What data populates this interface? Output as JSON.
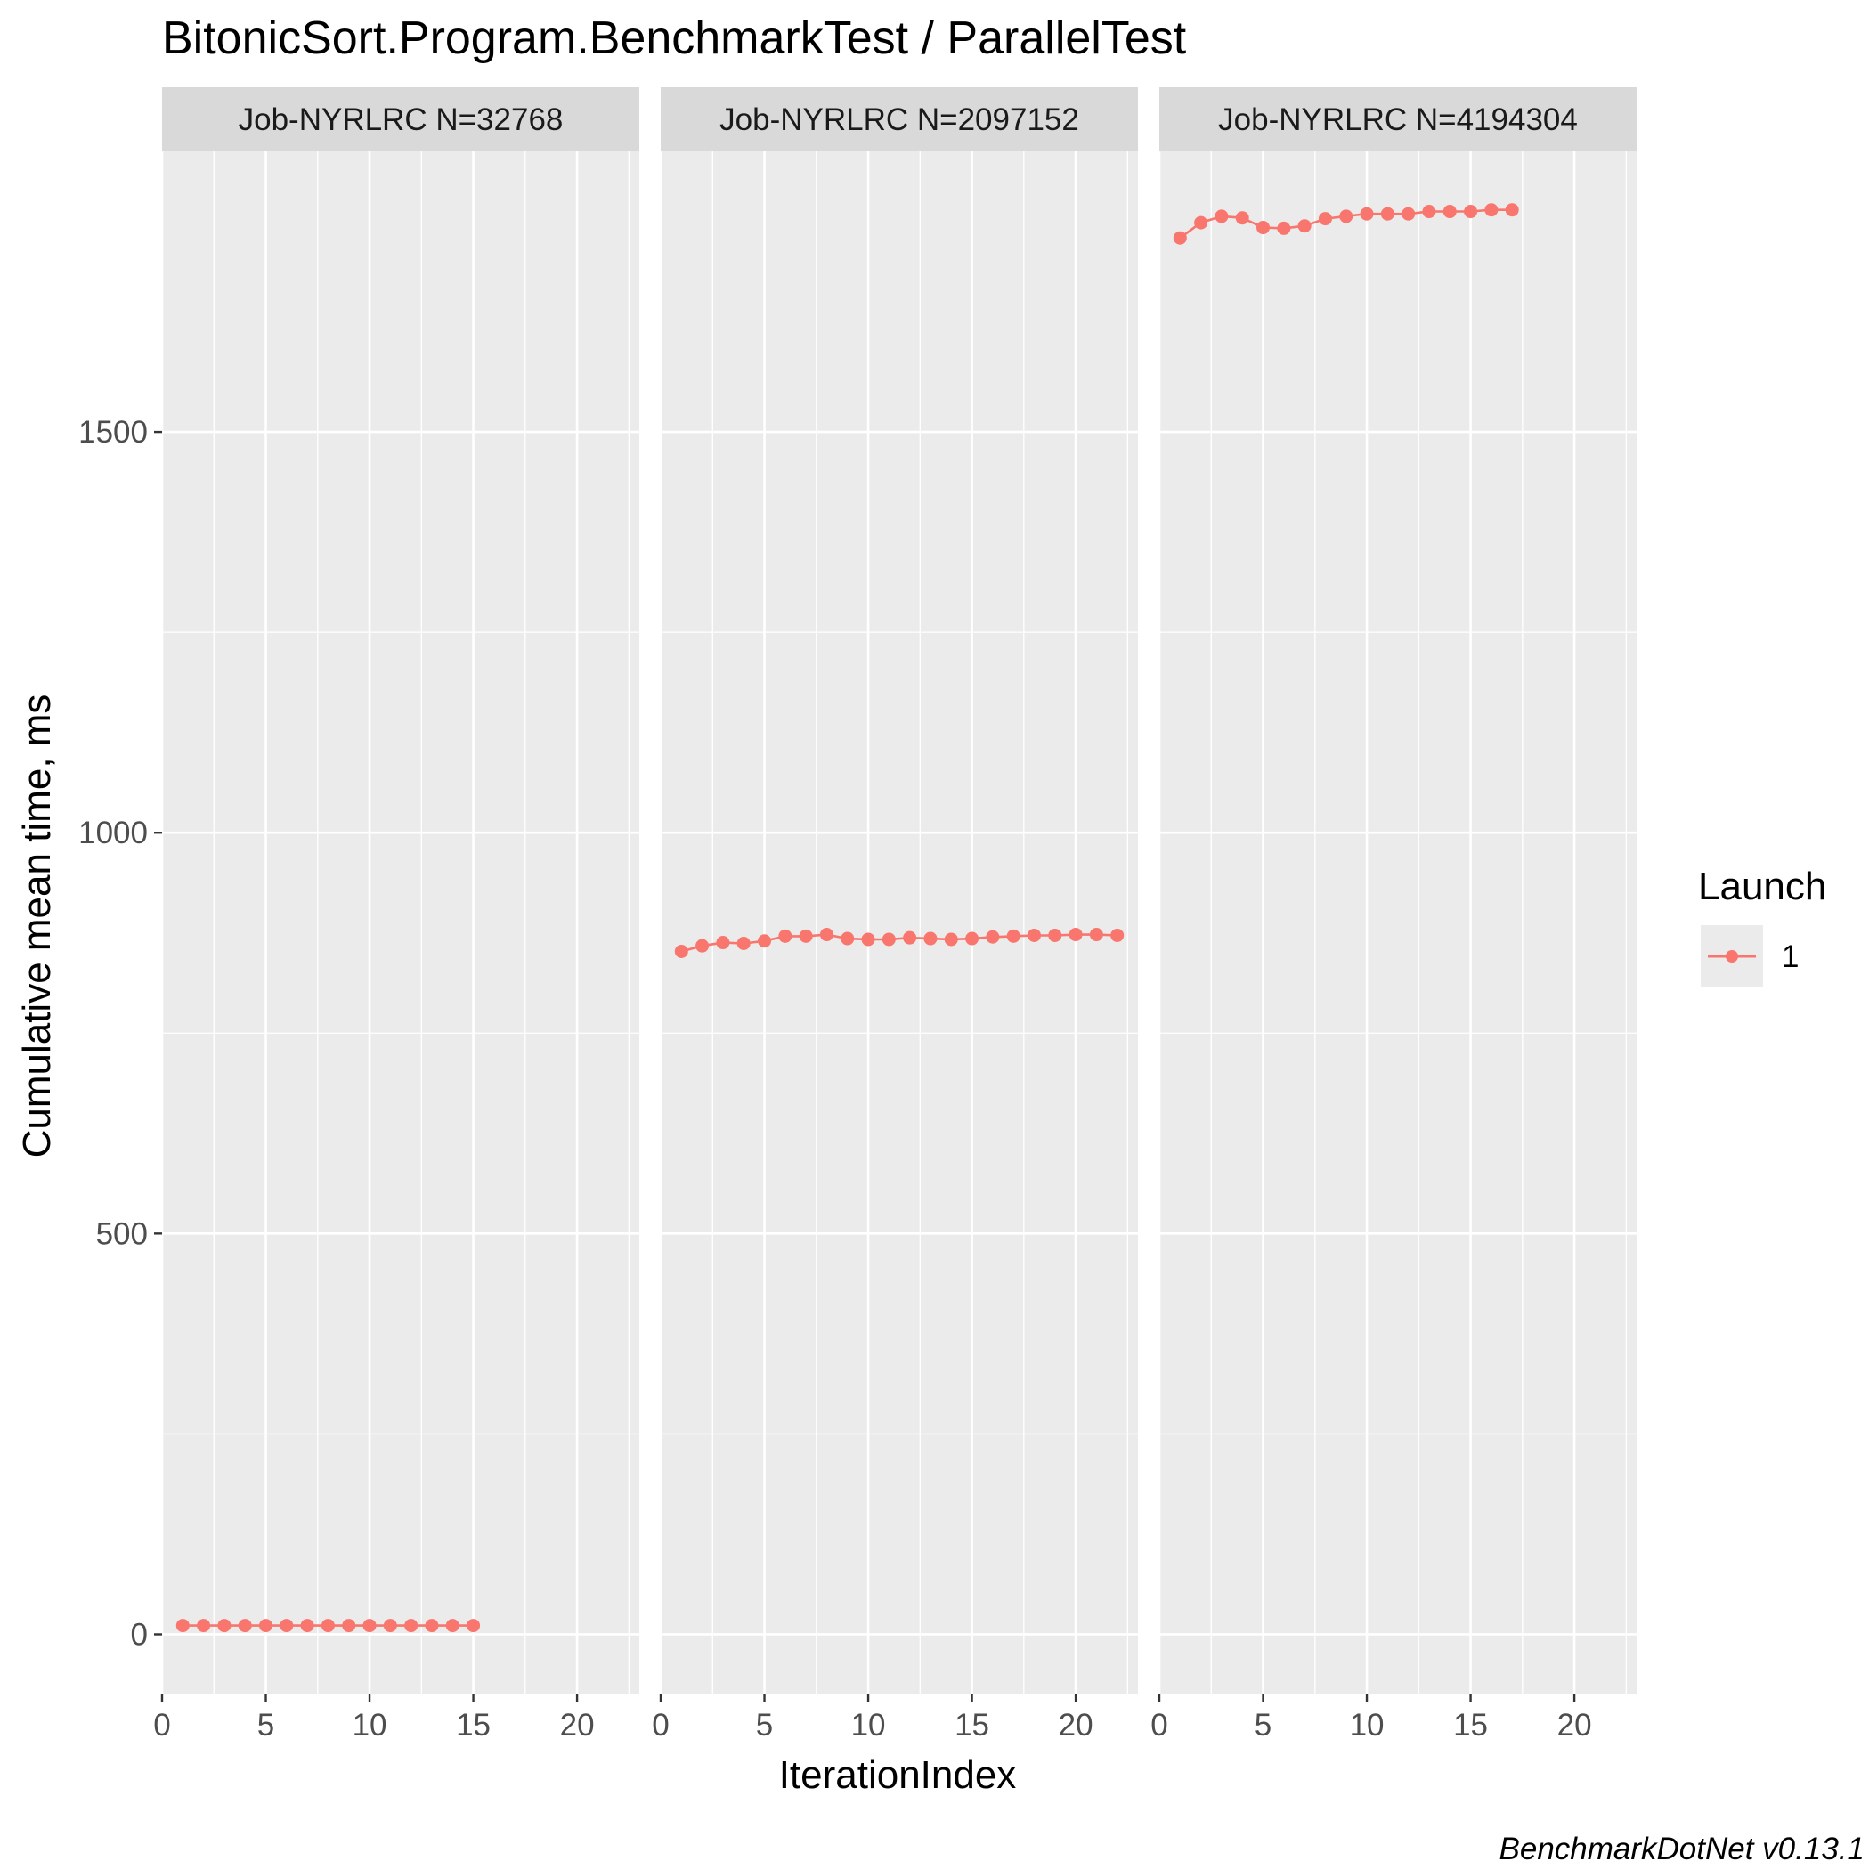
{
  "title": "BitonicSort.Program.BenchmarkTest / ParallelTest",
  "caption": "BenchmarkDotNet v0.13.1",
  "colors": {
    "series": "#F8766D",
    "panel_bg": "#EBEBEB",
    "strip_bg": "#D9D9D9",
    "grid": "#FFFFFF"
  },
  "chart_data": {
    "type": "line",
    "xlabel": "IterationIndex",
    "ylabel": "Cumulative mean time, ms",
    "xlim": [
      0,
      23
    ],
    "ylim": [
      -75,
      1850
    ],
    "x_ticks": [
      0,
      5,
      10,
      15,
      20
    ],
    "y_ticks": [
      0,
      500,
      1000,
      1500
    ],
    "grid": true,
    "legend": {
      "title": "Launch",
      "position": "right",
      "entries": [
        "1"
      ]
    },
    "panels": [
      {
        "strip": "Job-NYRLRC N=32768",
        "series": [
          {
            "name": "1",
            "x": [
              1,
              2,
              3,
              4,
              5,
              6,
              7,
              8,
              9,
              10,
              11,
              12,
              13,
              14,
              15
            ],
            "y": [
              11,
              11,
              11,
              11,
              11,
              11,
              11,
              11,
              11,
              11,
              11,
              11,
              11,
              11,
              11
            ]
          }
        ]
      },
      {
        "strip": "Job-NYRLRC N=2097152",
        "series": [
          {
            "name": "1",
            "x": [
              1,
              2,
              3,
              4,
              5,
              6,
              7,
              8,
              9,
              10,
              11,
              12,
              13,
              14,
              15,
              16,
              17,
              18,
              19,
              20,
              21,
              22
            ],
            "y": [
              852,
              859,
              863,
              862,
              865,
              871,
              871,
              873,
              868,
              867,
              867,
              869,
              868,
              867,
              868,
              870,
              871,
              872,
              872,
              873,
              873,
              872
            ]
          }
        ]
      },
      {
        "strip": "Job-NYRLRC N=4194304",
        "series": [
          {
            "name": "1",
            "x": [
              1,
              2,
              3,
              4,
              5,
              6,
              7,
              8,
              9,
              10,
              11,
              12,
              13,
              14,
              15,
              16,
              17
            ],
            "y": [
              1742,
              1761,
              1769,
              1767,
              1755,
              1754,
              1757,
              1766,
              1769,
              1772,
              1772,
              1772,
              1775,
              1775,
              1775,
              1777,
              1777
            ]
          }
        ]
      }
    ]
  }
}
